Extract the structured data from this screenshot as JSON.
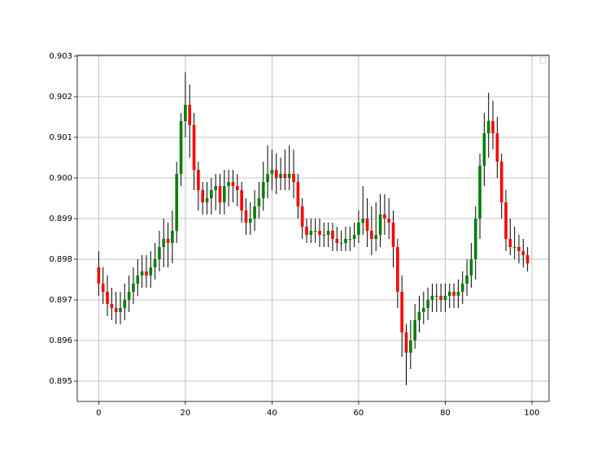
{
  "chart_data": {
    "type": "candlestick",
    "x": [
      0,
      1,
      2,
      3,
      4,
      5,
      6,
      7,
      8,
      9,
      10,
      11,
      12,
      13,
      14,
      15,
      16,
      17,
      18,
      19,
      20,
      21,
      22,
      23,
      24,
      25,
      26,
      27,
      28,
      29,
      30,
      31,
      32,
      33,
      34,
      35,
      36,
      37,
      38,
      39,
      40,
      41,
      42,
      43,
      44,
      45,
      46,
      47,
      48,
      49,
      50,
      51,
      52,
      53,
      54,
      55,
      56,
      57,
      58,
      59,
      60,
      61,
      62,
      63,
      64,
      65,
      66,
      67,
      68,
      69,
      70,
      71,
      72,
      73,
      74,
      75,
      76,
      77,
      78,
      79,
      80,
      81,
      82,
      83,
      84,
      85,
      86,
      87,
      88,
      89,
      90,
      91,
      92,
      93,
      94,
      95,
      96,
      97,
      98,
      99
    ],
    "open": [
      0.8978,
      0.8974,
      0.8972,
      0.8969,
      0.8968,
      0.8967,
      0.8968,
      0.897,
      0.8972,
      0.8974,
      0.8976,
      0.8977,
      0.8976,
      0.8978,
      0.898,
      0.8983,
      0.8985,
      0.8984,
      0.8987,
      0.9001,
      0.9014,
      0.9018,
      0.9013,
      0.9002,
      0.8997,
      0.8994,
      0.8995,
      0.8997,
      0.8998,
      0.8994,
      0.8998,
      0.8999,
      0.8998,
      0.8997,
      0.8992,
      0.8989,
      0.899,
      0.8993,
      0.8995,
      0.8999,
      0.9001,
      0.9002,
      0.9,
      0.9001,
      0.9,
      0.9001,
      0.8999,
      0.8993,
      0.8988,
      0.8986,
      0.8987,
      0.8987,
      0.8986,
      0.8986,
      0.8987,
      0.8985,
      0.8984,
      0.8984,
      0.8985,
      0.8985,
      0.8986,
      0.8989,
      0.899,
      0.8987,
      0.8985,
      0.8986,
      0.8991,
      0.899,
      0.8989,
      0.8983,
      0.8972,
      0.8962,
      0.8957,
      0.896,
      0.8965,
      0.8967,
      0.8968,
      0.897,
      0.8971,
      0.8971,
      0.897,
      0.8971,
      0.8972,
      0.8971,
      0.8972,
      0.8974,
      0.8976,
      0.898,
      0.899,
      0.9003,
      0.9011,
      0.9014,
      0.9011,
      0.9004,
      0.8994,
      0.8985,
      0.8983,
      0.8983,
      0.8982,
      0.8981
    ],
    "high": [
      0.8982,
      0.8978,
      0.8976,
      0.8973,
      0.8972,
      0.8972,
      0.8974,
      0.8976,
      0.8978,
      0.898,
      0.8981,
      0.8981,
      0.8982,
      0.8984,
      0.8987,
      0.899,
      0.8989,
      0.8992,
      0.9004,
      0.9016,
      0.9026,
      0.9023,
      0.9016,
      0.9004,
      0.8999,
      0.8999,
      0.9,
      0.9001,
      0.9001,
      0.9002,
      0.9002,
      0.9002,
      0.9001,
      0.8999,
      0.8995,
      0.8994,
      0.8997,
      0.8999,
      0.9004,
      0.9008,
      0.9007,
      0.9006,
      0.9005,
      0.9007,
      0.9008,
      0.9007,
      0.9001,
      0.8995,
      0.899,
      0.899,
      0.899,
      0.899,
      0.8989,
      0.8989,
      0.8989,
      0.8988,
      0.8987,
      0.8988,
      0.8988,
      0.8989,
      0.8992,
      0.8998,
      0.8995,
      0.8993,
      0.8994,
      0.8996,
      0.8996,
      0.8995,
      0.8992,
      0.8985,
      0.8976,
      0.8964,
      0.8965,
      0.8969,
      0.8971,
      0.8972,
      0.8973,
      0.8974,
      0.8974,
      0.8974,
      0.8974,
      0.8974,
      0.8974,
      0.8975,
      0.8977,
      0.898,
      0.8984,
      0.8993,
      0.9006,
      0.9016,
      0.9021,
      0.9019,
      0.9015,
      0.9006,
      0.8997,
      0.899,
      0.8988,
      0.8986,
      0.8985,
      0.8983
    ],
    "low": [
      0.8971,
      0.8969,
      0.8966,
      0.8965,
      0.8964,
      0.8964,
      0.8965,
      0.8967,
      0.8969,
      0.8971,
      0.8973,
      0.8973,
      0.8973,
      0.8975,
      0.8977,
      0.8978,
      0.8978,
      0.8979,
      0.8984,
      0.8998,
      0.901,
      0.9005,
      0.8997,
      0.8992,
      0.8991,
      0.8991,
      0.8991,
      0.8992,
      0.8991,
      0.8991,
      0.8993,
      0.8994,
      0.8993,
      0.8989,
      0.8986,
      0.8986,
      0.8987,
      0.899,
      0.8992,
      0.8995,
      0.8997,
      0.8996,
      0.8997,
      0.8997,
      0.8997,
      0.8995,
      0.899,
      0.8985,
      0.8984,
      0.8984,
      0.8984,
      0.8983,
      0.8983,
      0.8983,
      0.8982,
      0.8982,
      0.8982,
      0.8982,
      0.8982,
      0.8983,
      0.8984,
      0.8986,
      0.8983,
      0.8981,
      0.8982,
      0.8983,
      0.8986,
      0.8985,
      0.8978,
      0.8968,
      0.8956,
      0.8949,
      0.8953,
      0.8958,
      0.8962,
      0.8964,
      0.8965,
      0.8967,
      0.8967,
      0.8967,
      0.8967,
      0.8968,
      0.8968,
      0.8968,
      0.8969,
      0.8971,
      0.8973,
      0.8975,
      0.8985,
      0.8998,
      0.9005,
      0.9007,
      0.9,
      0.899,
      0.8982,
      0.8981,
      0.898,
      0.8979,
      0.8978,
      0.8977
    ],
    "close": [
      0.8974,
      0.8972,
      0.8969,
      0.8968,
      0.8967,
      0.8968,
      0.897,
      0.8972,
      0.8974,
      0.8976,
      0.8977,
      0.8976,
      0.8978,
      0.898,
      0.8983,
      0.8985,
      0.8984,
      0.8987,
      0.9001,
      0.9014,
      0.9018,
      0.9013,
      0.9002,
      0.8997,
      0.8994,
      0.8995,
      0.8997,
      0.8998,
      0.8994,
      0.8998,
      0.8999,
      0.8998,
      0.8997,
      0.8992,
      0.8989,
      0.899,
      0.8993,
      0.8995,
      0.8999,
      0.9001,
      0.9002,
      0.9,
      0.9001,
      0.9,
      0.9001,
      0.8999,
      0.8993,
      0.8988,
      0.8986,
      0.8987,
      0.8987,
      0.8986,
      0.8986,
      0.8987,
      0.8985,
      0.8984,
      0.8984,
      0.8985,
      0.8985,
      0.8986,
      0.8989,
      0.899,
      0.8987,
      0.8985,
      0.8986,
      0.8991,
      0.899,
      0.8989,
      0.8983,
      0.8972,
      0.8962,
      0.8957,
      0.896,
      0.8965,
      0.8967,
      0.8968,
      0.897,
      0.8971,
      0.8971,
      0.897,
      0.8971,
      0.8972,
      0.8971,
      0.8972,
      0.8974,
      0.8976,
      0.898,
      0.899,
      0.9003,
      0.9011,
      0.9014,
      0.9011,
      0.9004,
      0.8994,
      0.8985,
      0.8983,
      0.8983,
      0.8982,
      0.8981,
      0.8979
    ],
    "up_color": "#008000",
    "down_color": "#ff0000",
    "wick_color": "#000000",
    "xlim": [
      -4.95,
      103.95
    ],
    "xticks": [
      0,
      20,
      40,
      60,
      80,
      100
    ],
    "ylim": [
      0.8945,
      0.90302
    ],
    "yticks": [
      0.895,
      0.896,
      0.897,
      0.898,
      0.899,
      {
        "value": 0.9,
        "label": "0.900"
      },
      0.901,
      0.902,
      0.903
    ],
    "grid": true
  }
}
